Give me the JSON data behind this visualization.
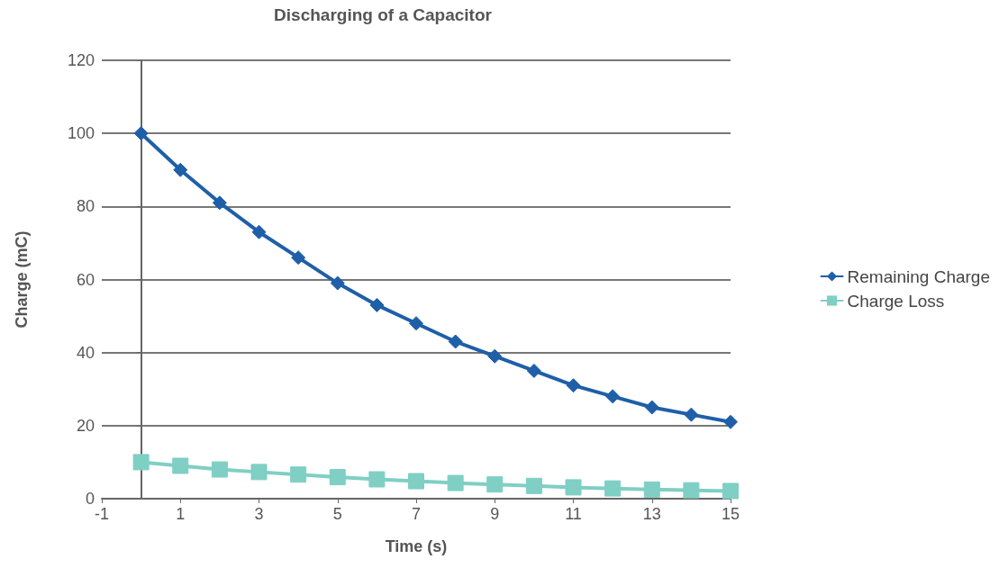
{
  "chart_data": {
    "type": "line",
    "title": "Discharging of a Capacitor",
    "xlabel": "Time (s)",
    "ylabel": "Charge (mC)",
    "x": [
      0,
      1,
      2,
      3,
      4,
      5,
      6,
      7,
      8,
      9,
      10,
      11,
      12,
      13,
      14,
      15
    ],
    "xlim": [
      -1,
      15
    ],
    "xticks": [
      -1,
      1,
      3,
      5,
      7,
      9,
      11,
      13,
      15
    ],
    "ylim": [
      0,
      120
    ],
    "yticks": [
      0,
      20,
      40,
      60,
      80,
      100,
      120
    ],
    "grid": "y",
    "legend": "right",
    "line_style": "solid",
    "series": [
      {
        "name": "Remaining Charge",
        "color": "#1f5fa8",
        "marker": "diamond",
        "values": [
          100,
          90,
          81,
          73,
          66,
          59,
          53,
          48,
          43,
          39,
          35,
          31,
          28,
          25,
          23,
          21
        ]
      },
      {
        "name": "Charge Loss",
        "color": "#7fcfc4",
        "marker": "square",
        "values": [
          10,
          9,
          8,
          7.3,
          6.6,
          5.9,
          5.3,
          4.8,
          4.3,
          3.9,
          3.5,
          3.1,
          2.8,
          2.5,
          2.3,
          2.1
        ]
      }
    ]
  }
}
